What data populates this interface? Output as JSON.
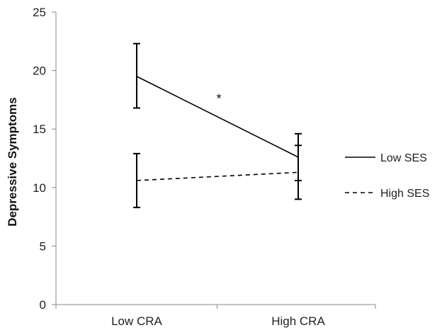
{
  "chart_data": {
    "type": "line",
    "categories": [
      "Low CRA",
      "High CRA"
    ],
    "ylabel": "Depressive Symptoms",
    "ylim": [
      0,
      25
    ],
    "yticks": [
      "0",
      "5",
      "10",
      "15",
      "20",
      "25"
    ],
    "grid": false,
    "legend_position": "right",
    "series": [
      {
        "name": "Low SES",
        "style": "solid",
        "values": [
          19.5,
          12.6
        ],
        "err_low": [
          16.8,
          10.6
        ],
        "err_high": [
          22.3,
          14.6
        ]
      },
      {
        "name": "High SES",
        "style": "dashed",
        "values": [
          10.6,
          11.3
        ],
        "err_low": [
          8.3,
          9.0
        ],
        "err_high": [
          12.9,
          13.6
        ]
      }
    ],
    "annotations": [
      {
        "text": "*",
        "x": 0.5,
        "y": 17.7
      }
    ]
  },
  "colors": {
    "line": "#000000",
    "axis": "#888888",
    "text": "#222222"
  }
}
